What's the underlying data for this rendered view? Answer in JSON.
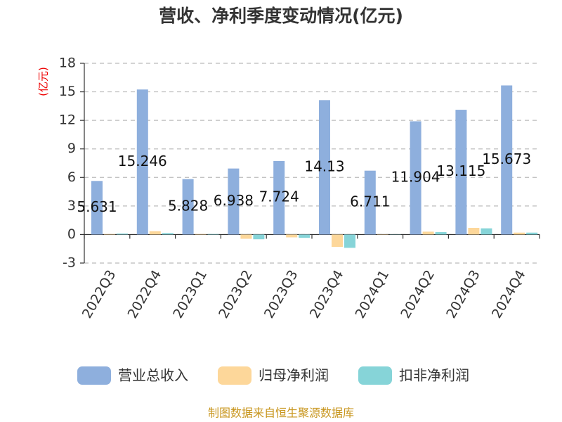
{
  "chart_data": {
    "type": "bar",
    "title": "营收、净利季度变动情况(亿元)",
    "y_axis_label": "(亿元)",
    "source": "制图数据来自恒生聚源数据库",
    "categories": [
      "2022Q3",
      "2022Q4",
      "2023Q1",
      "2023Q2",
      "2023Q3",
      "2023Q4",
      "2024Q1",
      "2024Q2",
      "2024Q3",
      "2024Q4"
    ],
    "series": [
      {
        "name": "营业总收入",
        "color": "#8eafdd",
        "values": [
          5.631,
          15.246,
          5.828,
          6.938,
          7.724,
          14.13,
          6.711,
          11.904,
          13.115,
          15.673
        ]
      },
      {
        "name": "归母净利润",
        "color": "#fdd79a",
        "values": [
          0.05,
          0.35,
          0.05,
          -0.45,
          -0.3,
          -1.3,
          0.03,
          0.3,
          0.7,
          0.2
        ]
      },
      {
        "name": "扣非净利润",
        "color": "#86d4d8",
        "values": [
          0.1,
          0.15,
          0.05,
          -0.5,
          -0.35,
          -1.4,
          0.02,
          0.25,
          0.65,
          0.2
        ]
      }
    ],
    "ylim": [
      -3,
      18
    ],
    "yticks": [
      -3,
      0,
      3,
      6,
      9,
      12,
      15,
      18
    ],
    "grid": true,
    "legend": "bottom"
  }
}
